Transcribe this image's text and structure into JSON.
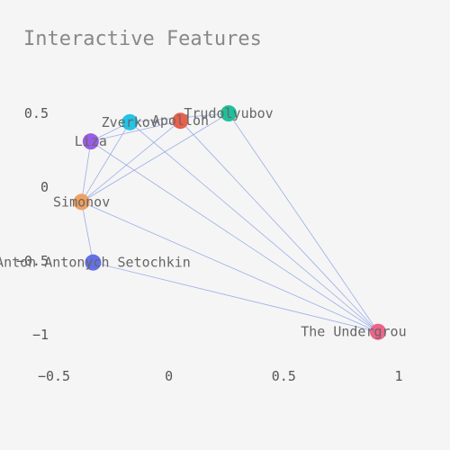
{
  "chart_data": {
    "type": "scatter",
    "title": "Interactive Features",
    "xlabel": "",
    "ylabel": "",
    "xlim": [
      -0.5,
      1.0
    ],
    "ylim": [
      -1.0,
      0.5
    ],
    "x_ticks": [
      -0.5,
      0,
      0.5,
      1
    ],
    "x_tick_labels": [
      "−0.5",
      "0",
      "0.5",
      "1"
    ],
    "y_ticks": [
      -1,
      -0.5,
      0,
      0.5
    ],
    "y_tick_labels": [
      "−1",
      "−0.5",
      "0",
      "0.5"
    ],
    "grid": false,
    "legend": "none",
    "nodes": [
      {
        "name": "Trudolyubov",
        "x": 0.26,
        "y": 0.5,
        "color": "#1ec09a"
      },
      {
        "name": "Apollon",
        "x": 0.05,
        "y": 0.45,
        "color": "#e8604c"
      },
      {
        "name": "Zverkov",
        "x": -0.17,
        "y": 0.44,
        "color": "#22c4e8"
      },
      {
        "name": "Liza",
        "x": -0.34,
        "y": 0.31,
        "color": "#9a5ce8"
      },
      {
        "name": "Simonov",
        "x": -0.38,
        "y": -0.1,
        "color": "#f0a060"
      },
      {
        "name": "Anton Antonych Setochkin",
        "x": -0.33,
        "y": -0.51,
        "color": "#6470e8"
      },
      {
        "name": "The Underground Man",
        "x": 0.91,
        "y": -0.98,
        "color": "#ee6488"
      }
    ],
    "edges": [
      [
        "Trudolyubov",
        "The Underground Man"
      ],
      [
        "Trudolyubov",
        "Simonov"
      ],
      [
        "Trudolyubov",
        "Zverkov"
      ],
      [
        "Apollon",
        "The Underground Man"
      ],
      [
        "Apollon",
        "Simonov"
      ],
      [
        "Apollon",
        "Liza"
      ],
      [
        "Zverkov",
        "The Underground Man"
      ],
      [
        "Zverkov",
        "Simonov"
      ],
      [
        "Zverkov",
        "Liza"
      ],
      [
        "Liza",
        "The Underground Man"
      ],
      [
        "Liza",
        "Simonov"
      ],
      [
        "Simonov",
        "The Underground Man"
      ],
      [
        "Simonov",
        "Anton Antonych Setochkin"
      ],
      [
        "Anton Antonych Setochkin",
        "The Underground Man"
      ]
    ]
  }
}
